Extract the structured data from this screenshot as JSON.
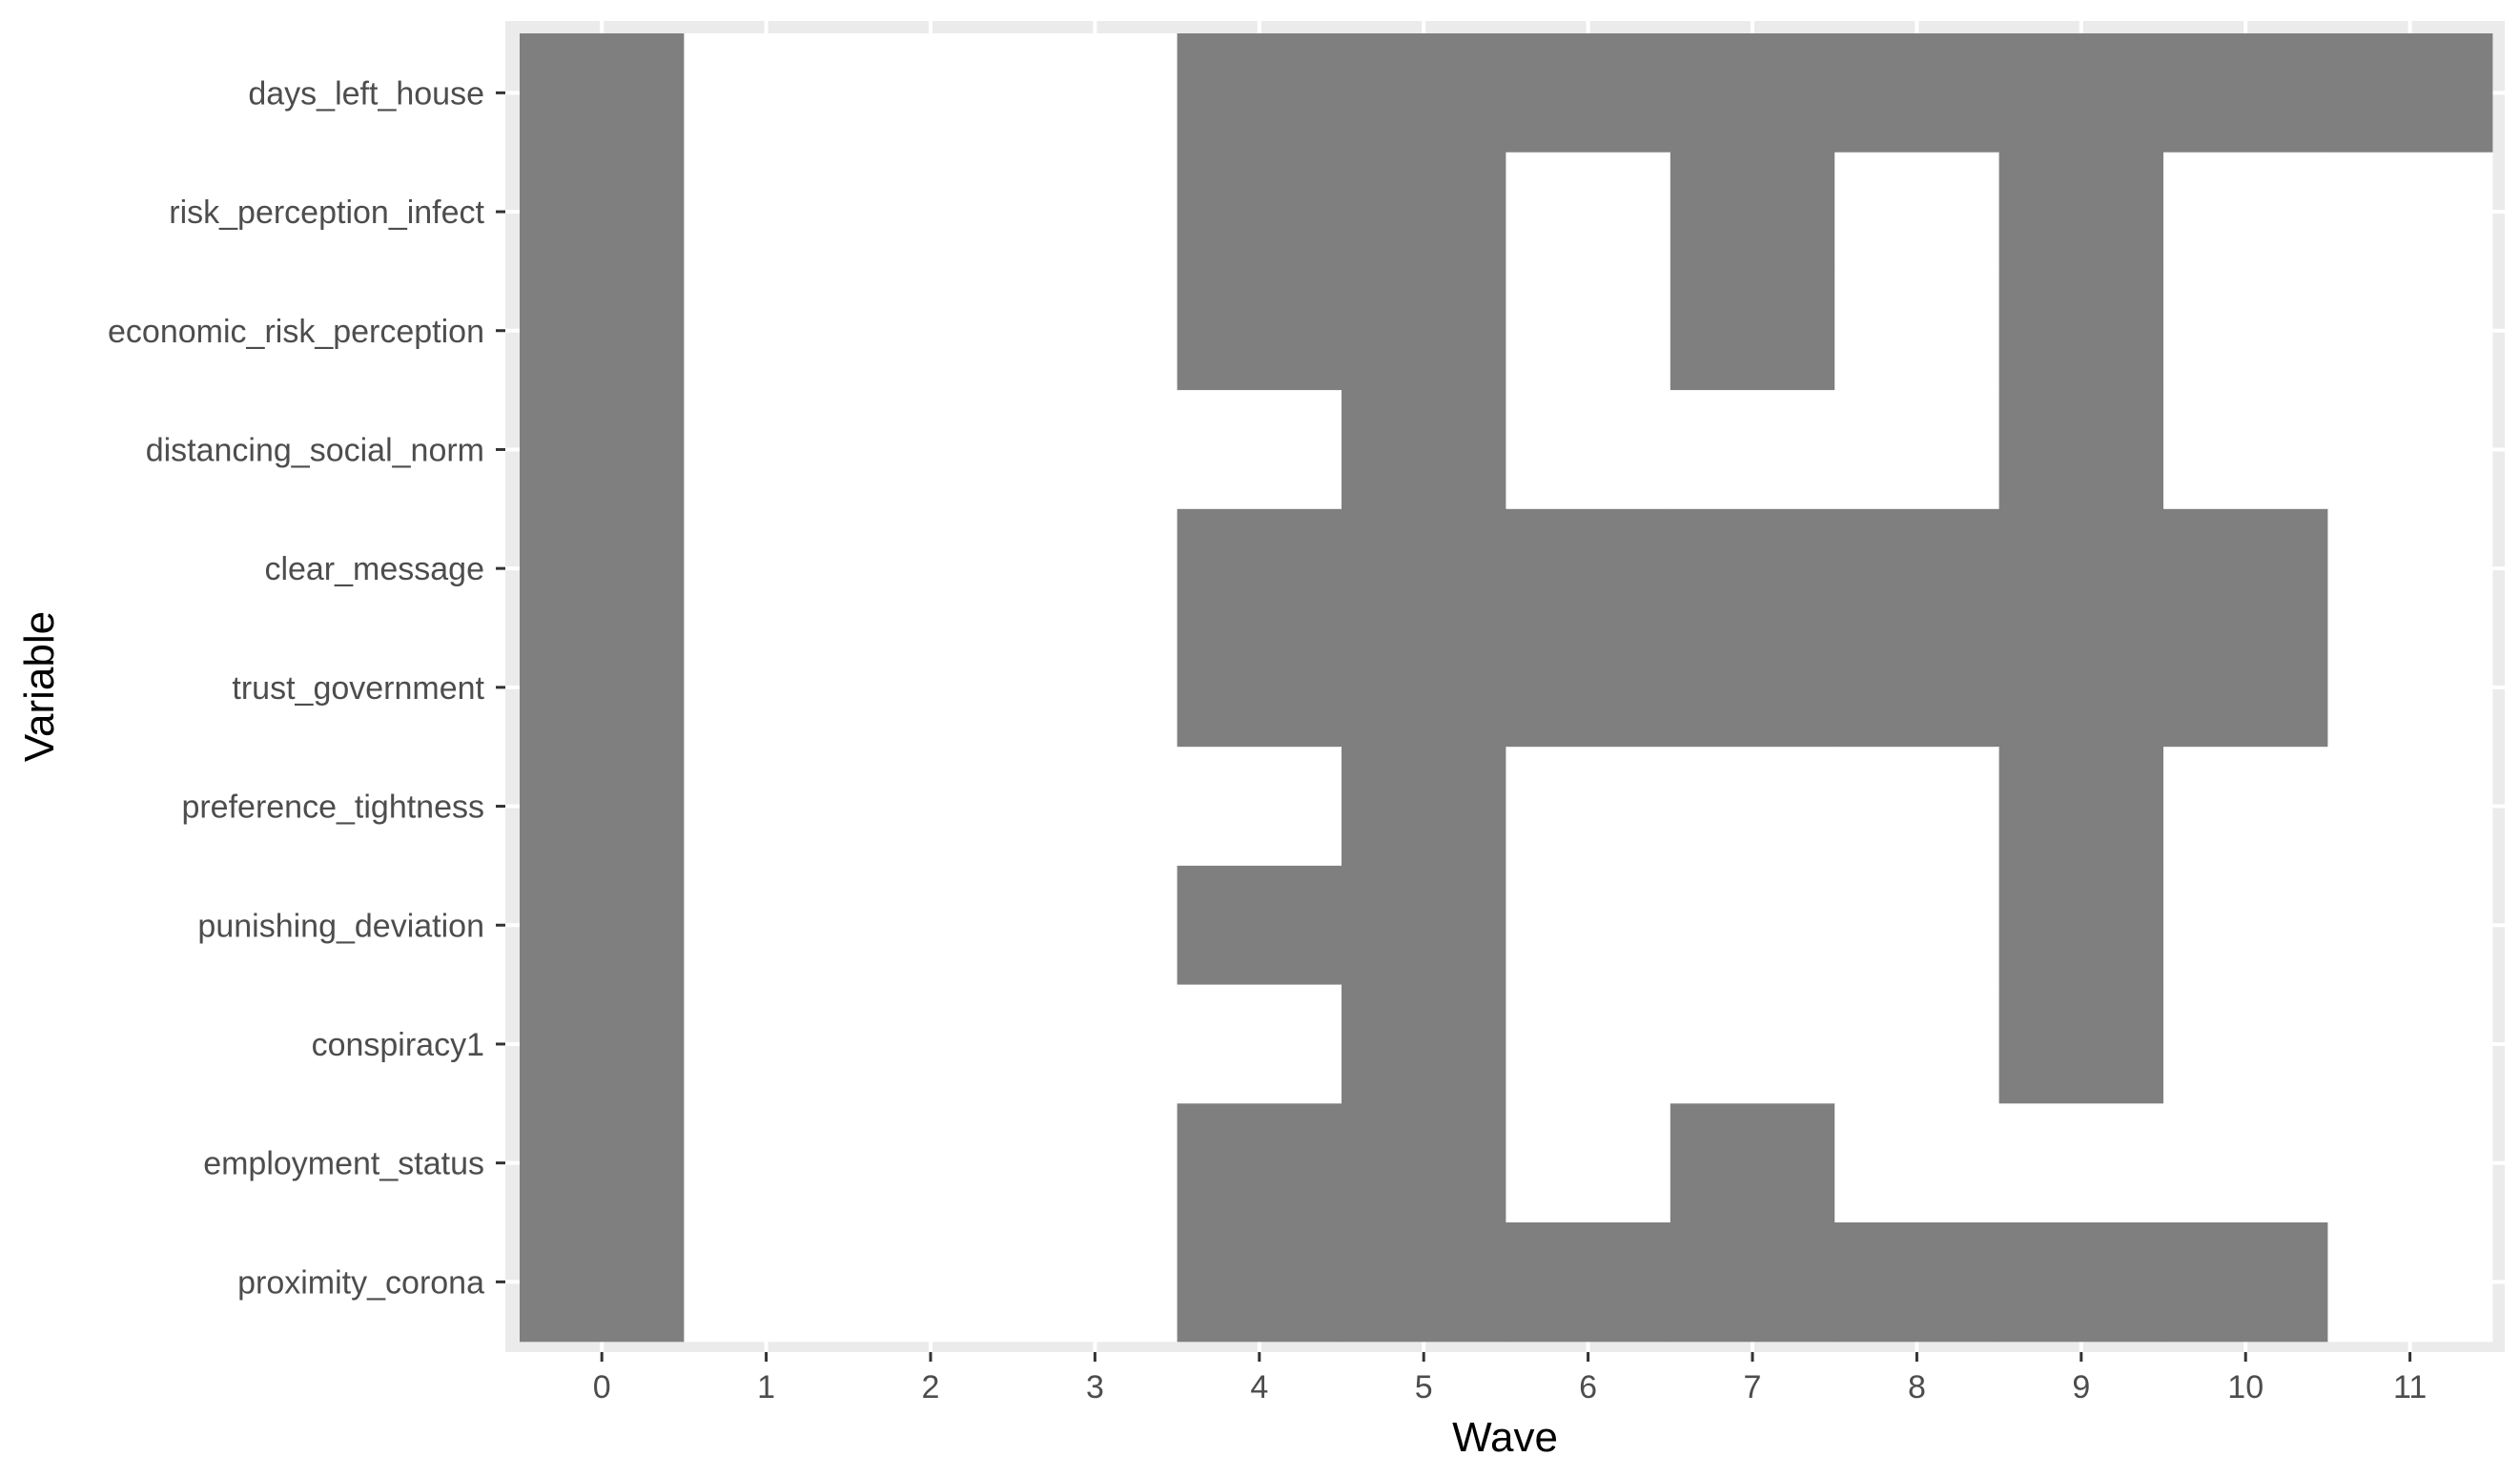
{
  "chart_data": {
    "type": "heatmap",
    "title": "",
    "xlabel": "Wave",
    "ylabel": "Variable",
    "x": [
      "0",
      "1",
      "2",
      "3",
      "4",
      "5",
      "6",
      "7",
      "8",
      "9",
      "10",
      "11"
    ],
    "y": [
      "days_left_house",
      "risk_perception_infect",
      "economic_risk_perception",
      "distancing_social_norm",
      "clear_message",
      "trust_government",
      "preference_tightness",
      "punishing_deviation",
      "conspiracy1",
      "employment_status",
      "proximity_corona"
    ],
    "values": [
      [
        1,
        0,
        0,
        0,
        1,
        1,
        1,
        1,
        1,
        1,
        1,
        1
      ],
      [
        1,
        0,
        0,
        0,
        1,
        1,
        0,
        1,
        0,
        1,
        0,
        0
      ],
      [
        1,
        0,
        0,
        0,
        1,
        1,
        0,
        1,
        0,
        1,
        0,
        0
      ],
      [
        1,
        0,
        0,
        0,
        0,
        1,
        0,
        0,
        0,
        1,
        0,
        0
      ],
      [
        1,
        0,
        0,
        0,
        1,
        1,
        1,
        1,
        1,
        1,
        1,
        0
      ],
      [
        1,
        0,
        0,
        0,
        1,
        1,
        1,
        1,
        1,
        1,
        1,
        0
      ],
      [
        1,
        0,
        0,
        0,
        0,
        1,
        0,
        0,
        0,
        1,
        0,
        0
      ],
      [
        1,
        0,
        0,
        0,
        1,
        1,
        0,
        0,
        0,
        1,
        0,
        0
      ],
      [
        1,
        0,
        0,
        0,
        0,
        1,
        0,
        0,
        0,
        1,
        0,
        0
      ],
      [
        1,
        0,
        0,
        0,
        1,
        1,
        0,
        1,
        0,
        0,
        0,
        0
      ],
      [
        1,
        0,
        0,
        0,
        1,
        1,
        1,
        1,
        1,
        1,
        1,
        0
      ]
    ],
    "fill_color": "#7f7f7f",
    "empty_color": "#ffffff",
    "panel_background": "#ebebeb",
    "grid": true,
    "legend": "none"
  }
}
